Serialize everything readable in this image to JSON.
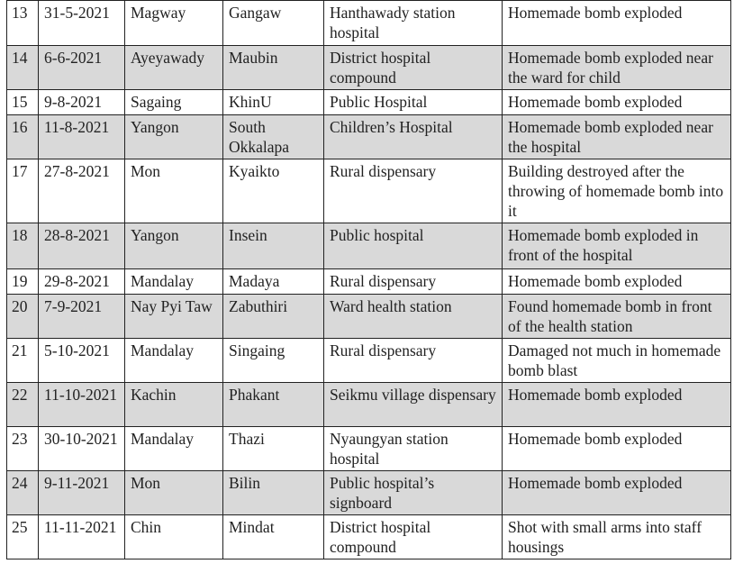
{
  "rows": [
    {
      "no": "13",
      "date": "31-5-2021",
      "region": "Magway",
      "township": "Gangaw",
      "place": "Hanthawady station hospital",
      "incident": "Homemade bomb exploded"
    },
    {
      "no": "14",
      "date": "6-6-2021",
      "region": "Ayeyawady",
      "township": "Maubin",
      "place": "District hospital compound",
      "incident": "Homemade bomb exploded near the ward for child"
    },
    {
      "no": "15",
      "date": "9-8-2021",
      "region": "Sagaing",
      "township": "KhinU",
      "place": "Public Hospital",
      "incident": "Homemade bomb exploded"
    },
    {
      "no": "16",
      "date": "11-8-2021",
      "region": "Yangon",
      "township": "South Okkalapa",
      "place": "Children’s Hospital",
      "incident": "Homemade bomb exploded near the hospital"
    },
    {
      "no": "17",
      "date": "27-8-2021",
      "region": "Mon",
      "township": "Kyaikto",
      "place": "Rural dispensary",
      "incident": "Building destroyed after the throwing of homemade bomb into it"
    },
    {
      "no": "18",
      "date": "28-8-2021",
      "region": "Yangon",
      "township": "Insein",
      "place": "Public hospital",
      "incident": "Homemade bomb exploded in front of the hospital"
    },
    {
      "no": "19",
      "date": "29-8-2021",
      "region": "Mandalay",
      "township": "Madaya",
      "place": "Rural dispensary",
      "incident": "Homemade bomb exploded"
    },
    {
      "no": "20",
      "date": "7-9-2021",
      "region": "Nay Pyi Taw",
      "township": "Zabuthiri",
      "place": "Ward health station",
      "incident": "Found homemade bomb in front of the health station"
    },
    {
      "no": "21",
      "date": "5-10-2021",
      "region": "Mandalay",
      "township": "Singaing",
      "place": "Rural dispensary",
      "incident": "Damaged not much in homemade bomb blast"
    },
    {
      "no": "22",
      "date": "11-10-2021",
      "region": "Kachin",
      "township": "Phakant",
      "place": "Seikmu village dispensary",
      "incident": "Homemade bomb exploded"
    },
    {
      "no": "23",
      "date": "30-10-2021",
      "region": "Mandalay",
      "township": "Thazi",
      "place": "Nyaungyan station hospital",
      "incident": "Homemade bomb exploded"
    },
    {
      "no": "24",
      "date": "9-11-2021",
      "region": "Mon",
      "township": "Bilin",
      "place": "Public hospital’s signboard",
      "incident": "Homemade bomb exploded"
    },
    {
      "no": "25",
      "date": "11-11-2021",
      "region": "Chin",
      "township": "Mindat",
      "place": "District hospital compound",
      "incident": "Shot with small arms into staff housings"
    }
  ],
  "colors": {
    "shaded_row": "#d9d9d9",
    "border": "#222222"
  }
}
